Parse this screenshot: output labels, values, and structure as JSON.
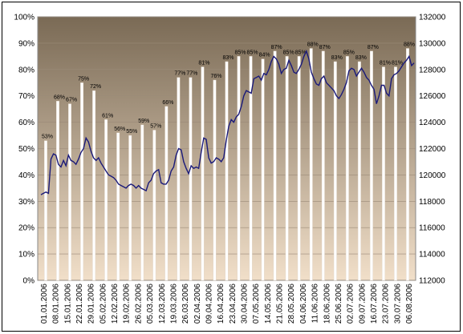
{
  "chart_data": {
    "type": "bar",
    "title": "",
    "xlabel": "",
    "ylabel": "",
    "left_axis": {
      "ticks": [
        "0%",
        "10%",
        "20%",
        "30%",
        "40%",
        "50%",
        "60%",
        "70%",
        "80%",
        "90%",
        "100%"
      ],
      "range": [
        0,
        100
      ]
    },
    "right_axis": {
      "ticks": [
        "112000",
        "114000",
        "116000",
        "118000",
        "120000",
        "122000",
        "124000",
        "126000",
        "128000",
        "130000",
        "132000"
      ],
      "range": [
        112000,
        132000
      ]
    },
    "x_ticks": [
      "01.01.2006",
      "08.01.2006",
      "15.01.2006",
      "22.01.2006",
      "29.01.2006",
      "05.02.2006",
      "12.02.2006",
      "19.02.2006",
      "26.02.2006",
      "05.03.2006",
      "12.03.2006",
      "19.03.2006",
      "26.03.2006",
      "02.04.2006",
      "09.04.2006",
      "16.04.2006",
      "23.04.2006",
      "30.04.2006",
      "07.05.2006",
      "14.05.2006",
      "21.05.2006",
      "28.05.2006",
      "04.06.2006",
      "11.06.2006",
      "18.06.2006",
      "25.06.2006",
      "02.07.2006",
      "09.07.2006",
      "16.07.2006",
      "23.07.2006",
      "30.07.2006",
      "06.08.2006"
    ],
    "bar_series": {
      "name": "",
      "color": "#ffffff",
      "values": [
        53,
        68,
        67,
        75,
        72,
        61,
        56,
        55,
        59,
        57,
        66,
        77,
        77,
        81,
        76,
        83,
        85,
        85,
        84,
        87,
        85,
        85,
        88,
        87,
        83,
        85,
        83,
        87,
        81,
        81,
        88
      ],
      "labels": [
        "53%",
        "68%",
        "67%",
        "75%",
        "72%",
        "61%",
        "56%",
        "55%",
        "59%",
        "57%",
        "66%",
        "77%",
        "77%",
        "81%",
        "76%",
        "83%",
        "85%",
        "85%",
        "84%",
        "87%",
        "85%",
        "85%",
        "88%",
        "87%",
        "83%",
        "85%",
        "83%",
        "87%",
        "81%",
        "81%",
        "88%"
      ]
    },
    "line_series": {
      "name": "",
      "color": "#1a1a7a",
      "values": [
        118500,
        118600,
        118700,
        118600,
        121200,
        121600,
        121500,
        120800,
        120600,
        121100,
        120700,
        121500,
        121100,
        121000,
        120800,
        121200,
        121700,
        122000,
        122800,
        122500,
        121800,
        121300,
        121100,
        121300,
        120900,
        120600,
        120300,
        120000,
        119900,
        119800,
        119600,
        119300,
        119200,
        119100,
        119000,
        119200,
        119300,
        119200,
        119000,
        119200,
        119000,
        118900,
        118800,
        119400,
        119600,
        120100,
        120300,
        120400,
        119400,
        119300,
        119300,
        119600,
        120300,
        120600,
        121500,
        122000,
        121900,
        121000,
        120500,
        120100,
        120700,
        120500,
        120600,
        120500,
        121700,
        122800,
        122700,
        121300,
        120900,
        121000,
        121300,
        121200,
        121000,
        121300,
        122600,
        123700,
        124200,
        124000,
        124400,
        124600,
        125200,
        126000,
        126400,
        126300,
        126200,
        127300,
        127400,
        127500,
        127200,
        127700,
        127600,
        128000,
        128600,
        129000,
        128800,
        128400,
        127700,
        128000,
        128100,
        128700,
        128300,
        127800,
        127700,
        128000,
        128400,
        129000,
        129400,
        128800,
        127800,
        127300,
        126900,
        126800,
        127300,
        127500,
        127000,
        126800,
        126600,
        126400,
        126000,
        125800,
        126100,
        126500,
        127000,
        127900,
        128100,
        128000,
        127500,
        127800,
        128100,
        127800,
        127400,
        127200,
        126800,
        126500,
        125400,
        126000,
        126800,
        126800,
        126200,
        126000,
        127300,
        127600,
        127700,
        127900,
        128200,
        128500,
        128700,
        129000,
        128300,
        128500
      ]
    },
    "background": {
      "top_color": "#7a6a55",
      "bottom_color": "#f1dfc9"
    },
    "grid": true,
    "legend": "none"
  }
}
